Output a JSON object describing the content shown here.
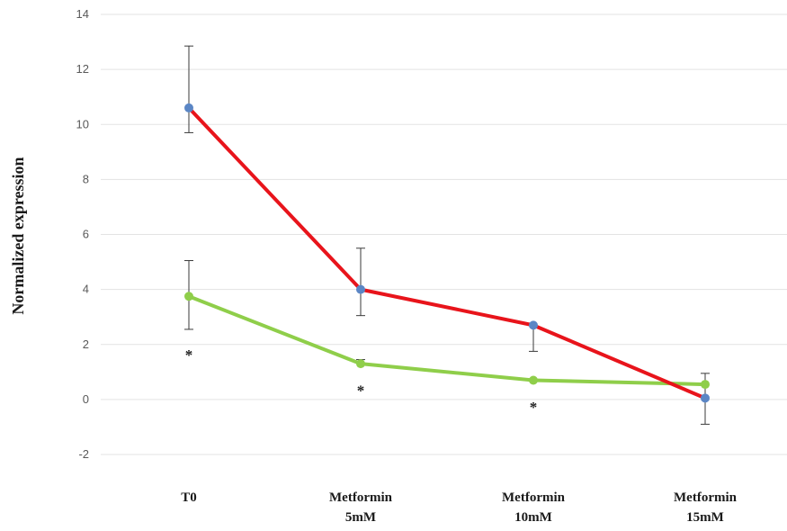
{
  "chart_data": {
    "type": "line",
    "title": "",
    "ylabel": "Normalized  expression",
    "xlabel": "",
    "ylim": [
      -2,
      14
    ],
    "yticks": [
      14,
      12,
      10,
      8,
      6,
      4,
      2,
      0,
      -2
    ],
    "categories": [
      [
        "T0"
      ],
      [
        "Metformin",
        "5mM"
      ],
      [
        "Metformin",
        "10mM"
      ],
      [
        "Metformin",
        "15mM"
      ]
    ],
    "grid": true,
    "legend": "none",
    "series": [
      {
        "color": "#e8141b",
        "marker_color": "#5b86c5",
        "values": [
          10.6,
          4.0,
          2.7,
          0.05
        ],
        "error_low": [
          9.7,
          3.05,
          1.75,
          -0.9
        ],
        "error_high": [
          12.85,
          5.5,
          null,
          0.95
        ]
      },
      {
        "color": "#8fce4a",
        "marker_color": "#8fce4a",
        "values": [
          3.75,
          1.3,
          0.7,
          0.55
        ],
        "error_low": [
          2.55,
          null,
          null,
          null
        ],
        "error_high": [
          5.05,
          1.45,
          null,
          null
        ]
      }
    ],
    "annotations": [
      {
        "text": "*",
        "category": 0,
        "y": 1.7
      },
      {
        "text": "*",
        "category": 1,
        "y": 0.4
      },
      {
        "text": "*",
        "category": 2,
        "y": -0.2
      }
    ]
  }
}
